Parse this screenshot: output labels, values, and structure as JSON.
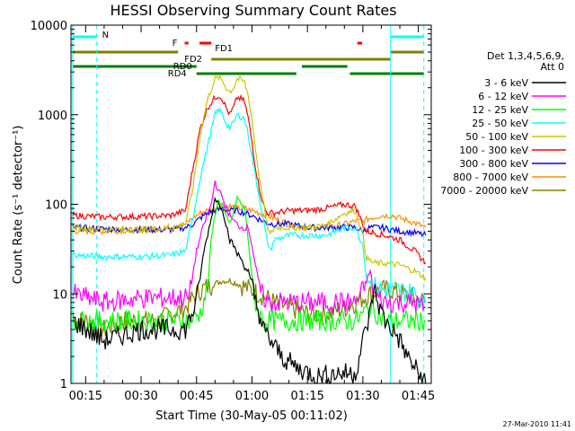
{
  "chart_data": {
    "type": "line",
    "title": "HESSI Observing Summary Count Rates",
    "xlabel": "Start Time (30-May-05 00:11:02)",
    "ylabel": "Count Rate (s⁻¹ detector⁻¹)",
    "x_tick_labels": [
      "00:15",
      "00:30",
      "00:45",
      "01:00",
      "01:15",
      "01:30",
      "01:45"
    ],
    "x_tick_minutes": [
      15,
      30,
      45,
      60,
      75,
      90,
      105
    ],
    "xlim_minutes": [
      11.03,
      108.5
    ],
    "y_scale": "log",
    "ylim": [
      1,
      10000
    ],
    "y_tick_labels": [
      "1",
      "10",
      "100",
      "1000",
      "10000"
    ],
    "legend_header": [
      "Det 1,3,4,5,6,9,",
      "Att 0"
    ],
    "legend_position": "right",
    "series": [
      {
        "name": "3 - 6 keV",
        "color": "#000000",
        "x": [
          11.5,
          20,
          30,
          38,
          42,
          45,
          47,
          49,
          50,
          51,
          52,
          53,
          54,
          55,
          56,
          57,
          58,
          59,
          60,
          61,
          62,
          63,
          65,
          68,
          72,
          78,
          83,
          88,
          90,
          92,
          93,
          94,
          96,
          98,
          100,
          102,
          104,
          107
        ],
        "y": [
          5,
          3,
          4,
          4,
          4,
          8,
          30,
          70,
          120,
          100,
          90,
          60,
          40,
          35,
          28,
          25,
          20,
          18,
          12,
          8,
          6,
          4,
          3,
          2,
          1.5,
          1.2,
          1.3,
          1.3,
          3,
          6,
          12,
          8,
          5,
          4,
          3,
          2,
          1.5,
          1
        ]
      },
      {
        "name": "6 - 12 keV",
        "color": "#ff00ff",
        "x": [
          11.5,
          20,
          30,
          38,
          43,
          45,
          47,
          49,
          50,
          51,
          52,
          53,
          54,
          55,
          56,
          57,
          58,
          59,
          60,
          61,
          62,
          63,
          65,
          70,
          80,
          88,
          90,
          92,
          93,
          94,
          96,
          100,
          104,
          107
        ],
        "y": [
          10,
          8,
          9,
          9,
          9,
          30,
          60,
          100,
          180,
          140,
          120,
          90,
          75,
          65,
          60,
          55,
          55,
          55,
          35,
          20,
          12,
          9,
          8,
          8,
          8,
          8,
          11,
          18,
          10,
          9,
          8,
          8,
          8,
          7
        ]
      },
      {
        "name": "12 - 25 keV",
        "color": "#00ff00",
        "x": [
          11.5,
          20,
          30,
          38,
          43,
          46,
          48,
          49,
          50,
          51,
          52,
          53,
          54,
          55,
          56,
          57,
          58,
          59,
          60,
          61,
          62,
          63,
          65,
          70,
          80,
          88,
          92,
          94,
          96,
          100,
          104,
          107
        ],
        "y": [
          5,
          5,
          5,
          5,
          5,
          6,
          12,
          40,
          80,
          110,
          100,
          70,
          60,
          80,
          120,
          100,
          90,
          40,
          15,
          8,
          6,
          5,
          5,
          5,
          5,
          5,
          7,
          6,
          5,
          5,
          5,
          5
        ]
      },
      {
        "name": "25 - 50 keV",
        "color": "#00ffff",
        "x": [
          11.5,
          20,
          30,
          38,
          42,
          44,
          46,
          48,
          50,
          51,
          52,
          53,
          54,
          55,
          56,
          57,
          58,
          59,
          60,
          61,
          62,
          63,
          64,
          65,
          66,
          70,
          75,
          80,
          85,
          88,
          90,
          91,
          93,
          96,
          100,
          104,
          107
        ],
        "y": [
          27,
          26,
          26,
          27,
          30,
          70,
          200,
          450,
          1000,
          1150,
          1000,
          800,
          720,
          800,
          1000,
          950,
          900,
          600,
          350,
          200,
          120,
          70,
          40,
          30,
          40,
          45,
          45,
          45,
          55,
          55,
          35,
          15,
          12,
          11,
          11,
          10,
          8
        ]
      },
      {
        "name": "50 - 100 keV",
        "color": "#c8c800",
        "x": [
          11.5,
          20,
          30,
          38,
          42,
          44,
          46,
          48,
          50,
          51,
          52,
          53,
          54,
          55,
          56,
          57,
          58,
          59,
          60,
          61,
          62,
          63,
          64,
          65,
          66,
          70,
          75,
          80,
          85,
          88,
          90,
          91,
          93,
          96,
          100,
          104,
          107
        ],
        "y": [
          55,
          53,
          52,
          54,
          60,
          150,
          600,
          1500,
          2500,
          2600,
          2400,
          2000,
          1800,
          2000,
          2500,
          2450,
          2300,
          1600,
          900,
          400,
          200,
          110,
          60,
          45,
          55,
          55,
          55,
          58,
          80,
          85,
          45,
          25,
          22,
          22,
          21,
          18,
          15
        ]
      },
      {
        "name": "100 - 300 keV",
        "color": "#ff0000",
        "x": [
          11.5,
          20,
          30,
          38,
          42,
          44,
          46,
          48,
          50,
          51,
          52,
          53,
          54,
          55,
          56,
          57,
          58,
          59,
          60,
          61,
          62,
          63,
          64,
          65,
          66,
          70,
          75,
          80,
          85,
          88,
          90,
          91,
          93,
          96,
          100,
          104,
          107
        ],
        "y": [
          75,
          72,
          73,
          75,
          85,
          250,
          700,
          1200,
          1550,
          1650,
          1500,
          1200,
          1000,
          1200,
          1550,
          1500,
          1400,
          900,
          500,
          250,
          150,
          100,
          80,
          80,
          80,
          85,
          85,
          90,
          100,
          95,
          60,
          50,
          48,
          45,
          40,
          30,
          22
        ]
      },
      {
        "name": "300 - 800 keV",
        "color": "#0000ff",
        "x": [
          11.5,
          20,
          30,
          38,
          42,
          44,
          46,
          48,
          50,
          52,
          54,
          56,
          58,
          60,
          62,
          64,
          66,
          70,
          75,
          80,
          85,
          88,
          90,
          92,
          95,
          100,
          104,
          107
        ],
        "y": [
          55,
          53,
          52,
          52,
          55,
          60,
          70,
          80,
          85,
          90,
          85,
          85,
          80,
          75,
          68,
          62,
          60,
          60,
          55,
          55,
          55,
          55,
          50,
          55,
          55,
          50,
          48,
          45
        ]
      },
      {
        "name": "800 - 7000 keV",
        "color": "#ff8c00",
        "x": [
          11.5,
          20,
          30,
          38,
          42,
          44,
          46,
          48,
          50,
          52,
          54,
          56,
          58,
          60,
          62,
          64,
          66,
          70,
          75,
          80,
          85,
          88,
          90,
          92,
          95,
          98,
          100,
          104,
          107
        ],
        "y": [
          50,
          50,
          52,
          55,
          60,
          70,
          80,
          85,
          90,
          95,
          95,
          90,
          90,
          85,
          80,
          75,
          70,
          60,
          55,
          55,
          60,
          65,
          65,
          70,
          75,
          75,
          70,
          62,
          55
        ]
      },
      {
        "name": "7000 - 20000 keV",
        "color": "#808000",
        "x": [
          11.5,
          15,
          20,
          25,
          30,
          35,
          38,
          42,
          44,
          46,
          48,
          50,
          52,
          54,
          56,
          58,
          60,
          62,
          64,
          66,
          70,
          75,
          80,
          85,
          88,
          90,
          92,
          95,
          98,
          100,
          104,
          107
        ],
        "y": [
          5,
          5,
          4,
          5,
          5,
          5,
          6,
          7,
          9,
          11,
          12,
          13,
          14,
          14,
          13,
          12,
          11,
          10,
          9,
          8,
          7,
          6,
          6,
          7,
          8,
          9,
          10,
          11,
          11,
          10,
          9,
          8
        ]
      }
    ],
    "status_bars": [
      {
        "label": "N",
        "color": "#00ffff",
        "segments": [
          [
            11.5,
            18
          ],
          [
            97.5,
            106.5
          ]
        ]
      },
      {
        "label": "F",
        "color": "#ff0000",
        "segments": [
          [
            41.8,
            42.8
          ],
          [
            45.8,
            49.0
          ],
          [
            88.5,
            89.8
          ]
        ]
      },
      {
        "label": "FD1",
        "color": "#808000",
        "segments": [
          [
            11.5,
            40.0
          ],
          [
            97.5,
            106.5
          ]
        ]
      },
      {
        "label": "FD2",
        "color": "#808000",
        "segments": [
          [
            49.0,
            97.5
          ]
        ]
      },
      {
        "label": "RD0",
        "color": "#008000",
        "segments": [
          [
            11.5,
            45.0
          ],
          [
            73.5,
            85.8
          ]
        ]
      },
      {
        "label": "RD4",
        "color": "#008000",
        "segments": [
          [
            45.0,
            72.0
          ],
          [
            86.5,
            106.5
          ]
        ]
      }
    ],
    "vertical_markers": [
      {
        "color": "#00ffff",
        "style": "solid",
        "x": [
          11.5,
          97.5
        ]
      },
      {
        "color": "#00ffff",
        "style": "dashed",
        "x": [
          18,
          106.5
        ]
      }
    ],
    "grid": false
  },
  "timestamp": "27-Mar-2010 11:41"
}
